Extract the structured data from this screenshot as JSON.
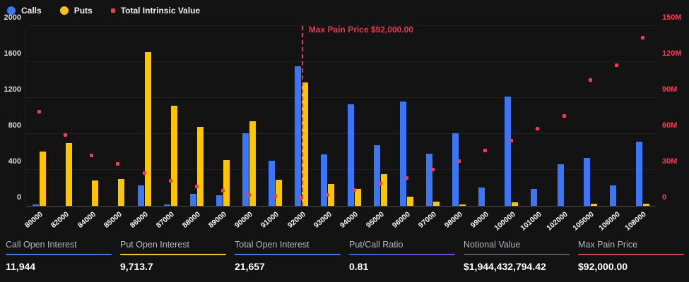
{
  "colors": {
    "calls": "#3b76f6",
    "puts": "#fdc500",
    "intrinsic": "#f23c55",
    "maxpain": "#e8354f",
    "background": "#131313",
    "notional_underline": "#565a61",
    "ratio_underline_start": "#2e68f0",
    "ratio_underline_end": "#8040f0"
  },
  "legend": [
    {
      "label": "Calls",
      "marker": "circle",
      "color": "#3b76f6"
    },
    {
      "label": "Puts",
      "marker": "circle",
      "color": "#fdc500"
    },
    {
      "label": "Total Intrinsic Value",
      "marker": "square",
      "color": "#f23c55"
    }
  ],
  "annotation": {
    "max_pain_label": "Max Pain Price $92,000.00"
  },
  "chart_data": {
    "type": "bar",
    "categories": [
      "80000",
      "82000",
      "84000",
      "85000",
      "86000",
      "87000",
      "88000",
      "89000",
      "90000",
      "91000",
      "92000",
      "93000",
      "94000",
      "95000",
      "96000",
      "97000",
      "98000",
      "99000",
      "100000",
      "101000",
      "102000",
      "105000",
      "106000",
      "108000"
    ],
    "series": [
      {
        "name": "Calls",
        "type": "bar",
        "axis": "left",
        "values": [
          15,
          0,
          0,
          0,
          225,
          10,
          135,
          120,
          805,
          500,
          1550,
          575,
          1130,
          675,
          1160,
          580,
          805,
          205,
          1215,
          190,
          465,
          535,
          230,
          710
        ]
      },
      {
        "name": "Puts",
        "type": "bar",
        "axis": "left",
        "values": [
          605,
          695,
          280,
          300,
          1710,
          1110,
          875,
          510,
          940,
          290,
          1370,
          240,
          185,
          350,
          100,
          50,
          15,
          0,
          40,
          0,
          0,
          25,
          0,
          20
        ]
      },
      {
        "name": "Total Intrinsic Value",
        "type": "scatter",
        "axis": "right",
        "values_millions": [
          78,
          59,
          42,
          35,
          27,
          20.5,
          16,
          12.5,
          9,
          7.5,
          6.6,
          9,
          13,
          18,
          23,
          30,
          37,
          46,
          54,
          64,
          74.5,
          105,
          117,
          140
        ]
      }
    ],
    "y_left": {
      "min": 0,
      "max": 2000,
      "ticks": [
        0,
        400,
        800,
        1200,
        1600,
        2000
      ]
    },
    "y_right": {
      "min": 0,
      "max_millions": 150,
      "ticks_millions": [
        0,
        30,
        60,
        90,
        120,
        150
      ],
      "tick_labels": [
        "0",
        "30M",
        "60M",
        "90M",
        "120M",
        "150M"
      ]
    },
    "legend_position": "top-left",
    "grid": true,
    "max_pain_index": 10,
    "max_pain_price": "92000"
  },
  "stats": [
    {
      "label": "Call Open Interest",
      "value": "11,944",
      "underline_color": "#3b76f6"
    },
    {
      "label": "Put Open Interest",
      "value": "9,713.7",
      "underline_color": "#fdc500"
    },
    {
      "label": "Total Open Interest",
      "value": "21,657",
      "underline_color": "#3b76f6"
    },
    {
      "label": "Put/Call Ratio",
      "value": "0.81",
      "underline_color": "#2e68f0",
      "underline_color2": "#8040f0"
    },
    {
      "label": "Notional Value",
      "value": "$1,944,432,794.42",
      "underline_color": "#565a61"
    },
    {
      "label": "Max Pain Price",
      "value": "$92,000.00",
      "underline_color": "#e8354f"
    }
  ]
}
